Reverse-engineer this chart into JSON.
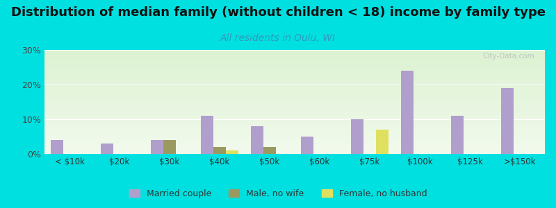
{
  "title": "Distribution of median family (without children < 18) income by family type",
  "subtitle": "All residents in Oulu, WI",
  "categories": [
    "< $10k",
    "$20k",
    "$30k",
    "$40k",
    "$50k",
    "$60k",
    "$75k",
    "$100k",
    "$125k",
    ">$150k"
  ],
  "married_couple": [
    4,
    3,
    4,
    11,
    8,
    5,
    10,
    24,
    11,
    19
  ],
  "male_no_wife": [
    0,
    0,
    4,
    2,
    2,
    0,
    0,
    0,
    0,
    0
  ],
  "female_no_husband": [
    0,
    0,
    0,
    1,
    0,
    0,
    7,
    0,
    0,
    0
  ],
  "bar_color_married": "#b09fcc",
  "bar_color_male": "#9a9a60",
  "bar_color_female": "#e0e060",
  "background_outer": "#00e0e0",
  "ylim_max": 30,
  "yticks": [
    0,
    10,
    20,
    30
  ],
  "ytick_labels": [
    "0%",
    "10%",
    "20%",
    "30%"
  ],
  "title_fontsize": 13,
  "subtitle_fontsize": 10,
  "legend_labels": [
    "Married couple",
    "Male, no wife",
    "Female, no husband"
  ],
  "watermark": "City-Data.com"
}
